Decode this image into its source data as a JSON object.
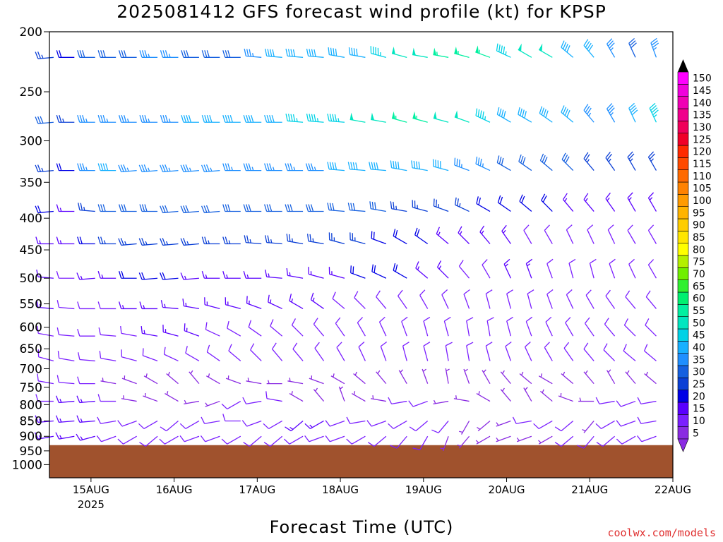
{
  "title": "2025081412 GFS forecast wind profile (kt) for KPSP",
  "xlabel": "Forecast Time (UTC)",
  "credit": "coolwx.com/models",
  "chart_data": {
    "type": "wind_barb_profile",
    "title": "2025081412 GFS forecast wind profile (kt) for KPSP",
    "xlabel": "Forecast Time (UTC)",
    "ylabel": "",
    "y_scale": "log",
    "y_inverted": true,
    "ylim": [
      1050,
      200
    ],
    "y_ticks": [
      200,
      250,
      300,
      350,
      400,
      450,
      500,
      550,
      600,
      650,
      700,
      750,
      800,
      850,
      900,
      950,
      1000
    ],
    "x_ticks": [
      {
        "day": 0.5,
        "label": "15AUG",
        "sub": "2025"
      },
      {
        "day": 1.5,
        "label": "16AUG",
        "sub": ""
      },
      {
        "day": 2.5,
        "label": "17AUG",
        "sub": ""
      },
      {
        "day": 3.5,
        "label": "18AUG",
        "sub": ""
      },
      {
        "day": 4.5,
        "label": "19AUG",
        "sub": ""
      },
      {
        "day": 5.5,
        "label": "20AUG",
        "sub": ""
      },
      {
        "day": 6.5,
        "label": "21AUG",
        "sub": ""
      },
      {
        "day": 7.5,
        "label": "22AUG",
        "sub": ""
      }
    ],
    "x_range_days": [
      0,
      7.5
    ],
    "time_step_hours": 6,
    "surface_pressure_hpa": 930,
    "surface_color": "#a0522d",
    "colorbar": {
      "position": "right",
      "labels": [
        5,
        10,
        15,
        20,
        25,
        30,
        35,
        40,
        45,
        50,
        55,
        60,
        65,
        70,
        75,
        80,
        85,
        90,
        95,
        100,
        105,
        110,
        115,
        120,
        125,
        130,
        135,
        140,
        145,
        150
      ],
      "colors": [
        "#8a2be2",
        "#7b1fff",
        "#5a00ff",
        "#0000e6",
        "#0a3fd6",
        "#1560e0",
        "#1f8fff",
        "#17b0ff",
        "#00d2e6",
        "#00e6c0",
        "#00f0a0",
        "#00f070",
        "#30f030",
        "#70f000",
        "#b4f000",
        "#ffff00",
        "#ffe600",
        "#ffcd00",
        "#ffb400",
        "#ff9b00",
        "#ff8200",
        "#ff6a00",
        "#ff4a00",
        "#ff2a00",
        "#f00028",
        "#f0005a",
        "#f0008c",
        "#f000b4",
        "#f000dc",
        "#ff00ff"
      ]
    },
    "levels": [
      {
        "p": 220,
        "dir": [
          265,
          270,
          270,
          270,
          270,
          270,
          270,
          270,
          270,
          270,
          275,
          275,
          275,
          275,
          280,
          280,
          285,
          285,
          280,
          280,
          285,
          290,
          295,
          300,
          300,
          310,
          320,
          330,
          335,
          340,
          330,
          320
        ],
        "spd": [
          25,
          20,
          30,
          30,
          30,
          35,
          35,
          30,
          30,
          30,
          35,
          40,
          40,
          40,
          40,
          40,
          45,
          50,
          50,
          55,
          55,
          55,
          45,
          50,
          50,
          40,
          40,
          35,
          30,
          35,
          30,
          30
        ]
      },
      {
        "p": 280,
        "dir": [
          265,
          270,
          270,
          270,
          270,
          270,
          270,
          270,
          270,
          270,
          270,
          270,
          275,
          275,
          275,
          280,
          280,
          285,
          285,
          285,
          290,
          295,
          300,
          300,
          305,
          310,
          320,
          330,
          335,
          335,
          330,
          320
        ],
        "spd": [
          30,
          25,
          35,
          35,
          35,
          35,
          35,
          40,
          40,
          40,
          40,
          40,
          45,
          45,
          45,
          50,
          50,
          55,
          55,
          50,
          50,
          45,
          40,
          40,
          40,
          40,
          35,
          35,
          40,
          45,
          35,
          30
        ]
      },
      {
        "p": 335,
        "dir": [
          265,
          270,
          270,
          270,
          265,
          265,
          265,
          265,
          265,
          270,
          270,
          270,
          270,
          270,
          275,
          275,
          275,
          280,
          280,
          285,
          290,
          295,
          300,
          305,
          310,
          315,
          320,
          325,
          330,
          330,
          325,
          320
        ],
        "spd": [
          25,
          20,
          35,
          40,
          35,
          35,
          35,
          35,
          35,
          35,
          35,
          35,
          35,
          35,
          40,
          40,
          40,
          40,
          40,
          40,
          35,
          35,
          30,
          30,
          30,
          30,
          25,
          25,
          25,
          25,
          25,
          25
        ]
      },
      {
        "p": 390,
        "dir": [
          265,
          270,
          275,
          270,
          270,
          270,
          265,
          265,
          265,
          270,
          270,
          270,
          270,
          270,
          275,
          275,
          280,
          280,
          285,
          290,
          295,
          300,
          305,
          310,
          315,
          320,
          320,
          325,
          330,
          330,
          325,
          320
        ],
        "spd": [
          20,
          15,
          25,
          30,
          30,
          30,
          30,
          30,
          30,
          30,
          30,
          30,
          30,
          30,
          30,
          30,
          30,
          25,
          25,
          25,
          25,
          20,
          20,
          20,
          20,
          15,
          15,
          15,
          15,
          15,
          10,
          10
        ]
      },
      {
        "p": 440,
        "dir": [
          270,
          270,
          270,
          270,
          265,
          265,
          265,
          265,
          270,
          270,
          275,
          275,
          280,
          280,
          285,
          285,
          290,
          300,
          305,
          310,
          315,
          320,
          325,
          330,
          330,
          335,
          335,
          335,
          330,
          330,
          325,
          320
        ],
        "spd": [
          15,
          15,
          20,
          25,
          25,
          25,
          25,
          25,
          25,
          25,
          25,
          25,
          25,
          25,
          25,
          25,
          20,
          20,
          20,
          15,
          15,
          15,
          15,
          10,
          10,
          10,
          10,
          10,
          10,
          10,
          10,
          10
        ]
      },
      {
        "p": 500,
        "dir": [
          275,
          270,
          265,
          270,
          270,
          265,
          265,
          265,
          270,
          270,
          270,
          275,
          280,
          285,
          285,
          290,
          295,
          300,
          310,
          315,
          320,
          330,
          335,
          340,
          340,
          345,
          345,
          340,
          335,
          330,
          325,
          320
        ],
        "spd": [
          15,
          10,
          15,
          15,
          20,
          20,
          20,
          15,
          15,
          15,
          15,
          15,
          15,
          15,
          15,
          20,
          20,
          20,
          15,
          15,
          10,
          10,
          15,
          15,
          10,
          10,
          10,
          10,
          10,
          10,
          10,
          10
        ]
      },
      {
        "p": 560,
        "dir": [
          275,
          275,
          270,
          270,
          270,
          270,
          275,
          280,
          285,
          285,
          290,
          295,
          300,
          305,
          310,
          315,
          320,
          325,
          330,
          335,
          340,
          345,
          345,
          345,
          340,
          335,
          330,
          325,
          320,
          320,
          320,
          320
        ],
        "spd": [
          15,
          10,
          10,
          10,
          15,
          15,
          15,
          15,
          15,
          15,
          15,
          15,
          15,
          15,
          10,
          10,
          10,
          10,
          10,
          10,
          10,
          10,
          10,
          10,
          10,
          10,
          10,
          10,
          10,
          10,
          10,
          10
        ]
      },
      {
        "p": 620,
        "dir": [
          280,
          275,
          270,
          275,
          280,
          280,
          285,
          290,
          295,
          300,
          305,
          310,
          315,
          320,
          325,
          330,
          335,
          340,
          345,
          345,
          350,
          350,
          345,
          340,
          335,
          330,
          325,
          320,
          315,
          315,
          315,
          315
        ],
        "spd": [
          10,
          10,
          10,
          10,
          10,
          15,
          15,
          15,
          10,
          10,
          10,
          10,
          10,
          10,
          10,
          10,
          10,
          10,
          10,
          10,
          10,
          10,
          10,
          10,
          10,
          10,
          10,
          10,
          10,
          10,
          10,
          10
        ]
      },
      {
        "p": 680,
        "dir": [
          285,
          280,
          275,
          280,
          285,
          290,
          295,
          300,
          305,
          310,
          315,
          320,
          320,
          325,
          330,
          335,
          340,
          345,
          345,
          350,
          350,
          345,
          340,
          335,
          330,
          325,
          320,
          315,
          310,
          310,
          310,
          310
        ],
        "spd": [
          10,
          10,
          10,
          10,
          10,
          10,
          10,
          10,
          10,
          10,
          10,
          10,
          10,
          10,
          10,
          10,
          10,
          10,
          10,
          10,
          10,
          10,
          10,
          10,
          10,
          10,
          10,
          10,
          10,
          10,
          10,
          10
        ]
      },
      {
        "p": 740,
        "dir": [
          280,
          275,
          270,
          280,
          290,
          300,
          310,
          320,
          300,
          290,
          280,
          270,
          280,
          290,
          300,
          310,
          320,
          330,
          340,
          350,
          340,
          330,
          320,
          310,
          300,
          310,
          320,
          330,
          320,
          310,
          300,
          290
        ],
        "spd": [
          10,
          10,
          10,
          5,
          5,
          5,
          5,
          5,
          5,
          5,
          5,
          5,
          5,
          5,
          5,
          5,
          5,
          5,
          5,
          5,
          5,
          5,
          5,
          5,
          5,
          5,
          5,
          5,
          5,
          5,
          5,
          5
        ]
      },
      {
        "p": 790,
        "dir": [
          270,
          265,
          265,
          270,
          280,
          290,
          300,
          260,
          250,
          240,
          260,
          280,
          300,
          320,
          340,
          300,
          280,
          260,
          250,
          260,
          280,
          300,
          320,
          330,
          310,
          290,
          270,
          260,
          250,
          260,
          270,
          280
        ],
        "spd": [
          10,
          15,
          15,
          10,
          5,
          5,
          5,
          5,
          5,
          10,
          10,
          10,
          5,
          5,
          5,
          5,
          5,
          10,
          10,
          5,
          5,
          5,
          5,
          5,
          5,
          5,
          5,
          10,
          10,
          10,
          5,
          10
        ]
      },
      {
        "p": 850,
        "dir": [
          265,
          265,
          265,
          260,
          250,
          240,
          230,
          240,
          260,
          270,
          250,
          240,
          230,
          240,
          250,
          260,
          250,
          240,
          230,
          220,
          210,
          230,
          250,
          260,
          240,
          230,
          220,
          240,
          250,
          260,
          250,
          240
        ],
        "spd": [
          15,
          15,
          15,
          10,
          10,
          10,
          10,
          10,
          10,
          10,
          10,
          10,
          15,
          15,
          10,
          10,
          10,
          10,
          10,
          10,
          5,
          5,
          5,
          10,
          10,
          10,
          5,
          10,
          10,
          10,
          10,
          10
        ]
      },
      {
        "p": 900,
        "dir": [
          260,
          260,
          255,
          250,
          240,
          230,
          240,
          250,
          250,
          240,
          230,
          230,
          240,
          250,
          250,
          240,
          230,
          220,
          210,
          200,
          220,
          240,
          250,
          250,
          240,
          230,
          220,
          230,
          240,
          250,
          240,
          230
        ],
        "spd": [
          15,
          15,
          15,
          10,
          10,
          10,
          10,
          10,
          10,
          10,
          10,
          10,
          10,
          10,
          10,
          10,
          10,
          10,
          10,
          5,
          5,
          5,
          5,
          5,
          5,
          10,
          10,
          10,
          10,
          10,
          10,
          10
        ]
      }
    ]
  }
}
